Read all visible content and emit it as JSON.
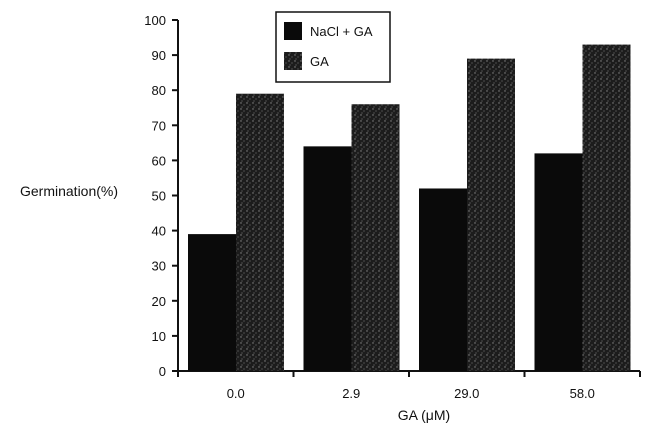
{
  "chart_data": {
    "type": "bar",
    "title": "",
    "xlabel": "GA (μM)",
    "ylabel": "Germination(%)",
    "ylim": [
      0,
      100
    ],
    "yticks": [
      0,
      10,
      20,
      30,
      40,
      50,
      60,
      70,
      80,
      90,
      100
    ],
    "categories": [
      "0.0",
      "2.9",
      "29.0",
      "58.0"
    ],
    "series": [
      {
        "name": "NaCl + GA",
        "values": [
          39,
          64,
          52,
          62
        ],
        "color": "#0a0a0a",
        "pattern": "solid"
      },
      {
        "name": "GA",
        "values": [
          79,
          76,
          89,
          93
        ],
        "color": "#2a2a2a",
        "pattern": "stipple"
      }
    ],
    "legend_position": "top-center",
    "grid": false
  }
}
